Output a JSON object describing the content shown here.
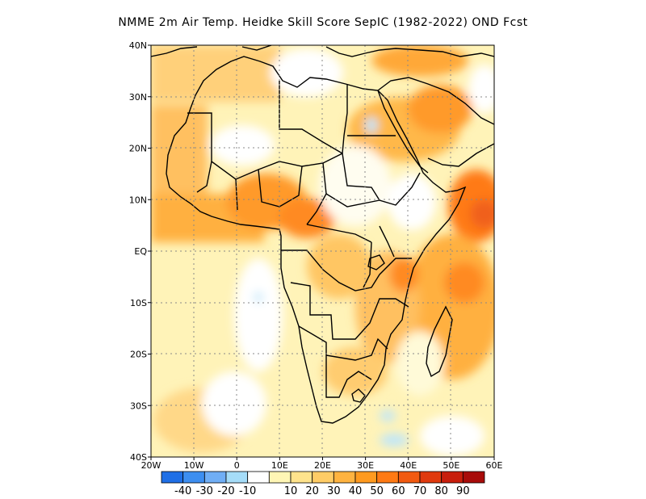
{
  "title": "NMME  2m Air Temp. Heidke Skill Score SepIC (1982-2022) OND Fcst",
  "map": {
    "lon_range": [
      -20,
      60
    ],
    "lat_range": [
      -40,
      40
    ],
    "lat_ticks": [
      "40N",
      "30N",
      "20N",
      "10N",
      "EQ",
      "10S",
      "20S",
      "30S",
      "40S"
    ],
    "lon_ticks": [
      "20W",
      "10W",
      "0",
      "10E",
      "20E",
      "30E",
      "40E",
      "50E",
      "60E"
    ],
    "gridlines": "dotted"
  },
  "colorbar": {
    "colors": [
      "#1f6fe6",
      "#3d8ef0",
      "#70aef5",
      "#a5dcf8",
      "#ffffff",
      "#fff6b5",
      "#ffe38c",
      "#ffcc66",
      "#ffb340",
      "#ff9a1f",
      "#ff7a14",
      "#f25a10",
      "#e03a0e",
      "#c81e0c",
      "#a80c0a"
    ],
    "labels": [
      "-40",
      "-30",
      "-20",
      "-10",
      "10",
      "20",
      "30",
      "40",
      "50",
      "60",
      "70",
      "80",
      "90"
    ]
  }
}
